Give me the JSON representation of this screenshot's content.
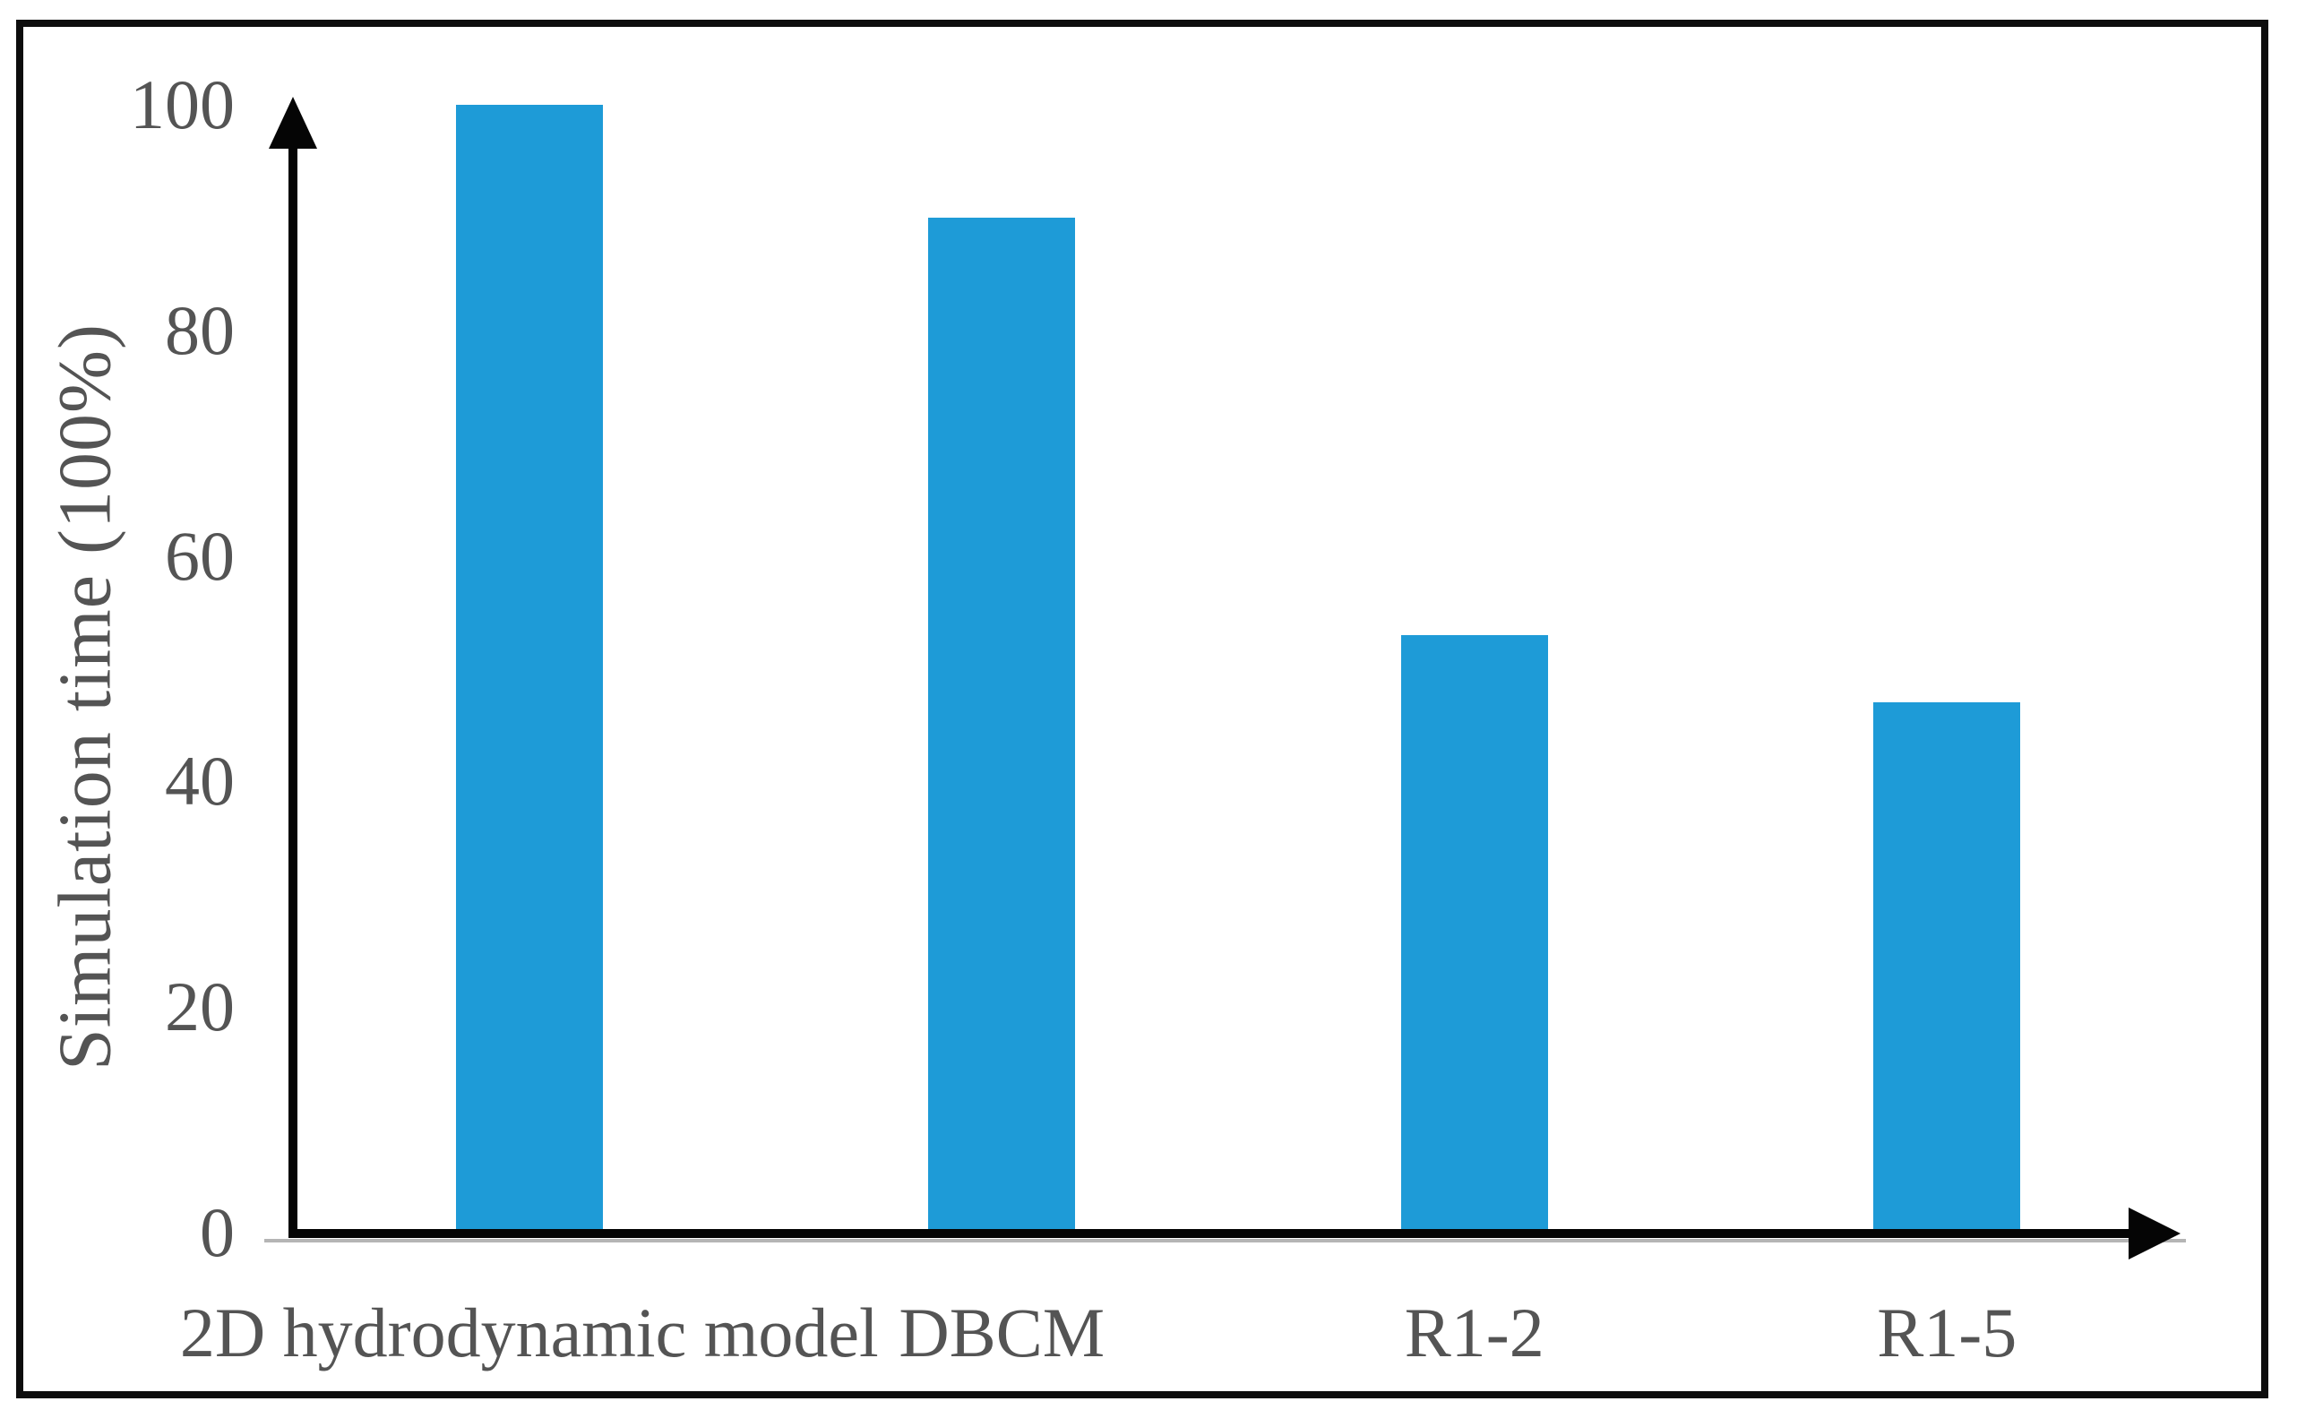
{
  "figure": {
    "description": "Bar chart comparing relative simulation time of flood models"
  },
  "chart_data": {
    "type": "bar",
    "title": "",
    "xlabel": "",
    "ylabel": "Simulation time (100%)",
    "categories": [
      "2D hydrodynamic model",
      "DBCM",
      "R1-2",
      "R1-5"
    ],
    "values": [
      100,
      90,
      53,
      47
    ],
    "ylim": [
      0,
      100
    ],
    "yticks": [
      0,
      20,
      40,
      60,
      80,
      100
    ],
    "grid": false,
    "legend": "none",
    "bar_color": "#1e9bd7",
    "axis_color": "#050505",
    "text_color": "#545454",
    "axis_arrows": true
  }
}
